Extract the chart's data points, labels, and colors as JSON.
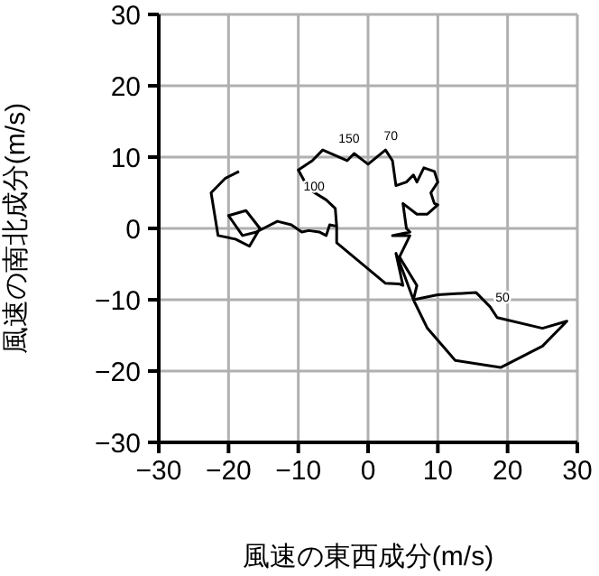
{
  "chart_data": {
    "type": "line",
    "xlabel": "風速の東西成分(m/s)",
    "ylabel": "風速の南北成分(m/s)",
    "xlim": [
      -30,
      30
    ],
    "ylim": [
      -30,
      30
    ],
    "xticks": [
      -30,
      -20,
      -10,
      0,
      10,
      20,
      30
    ],
    "yticks": [
      -30,
      -20,
      -10,
      0,
      10,
      20,
      30
    ],
    "grid": true,
    "marker": "none",
    "line_style": "solid",
    "series": [
      {
        "color": "#000000",
        "x": [
          -18.5,
          -20.5,
          -22.5,
          -21.5,
          -19,
          -17,
          -15.5,
          -17.5,
          -20,
          -18,
          -16,
          -15,
          -13,
          -11,
          -9.5,
          -8.5,
          -7,
          -6,
          -5.5,
          -4.5,
          -4.7,
          -6,
          -8.5,
          -10,
          -8,
          -6.5,
          -3,
          -2,
          0,
          2.5,
          3.5,
          4,
          5.5,
          6.5,
          7,
          8,
          9.5,
          10,
          9,
          9.5,
          10,
          8.5,
          7,
          5,
          5.5,
          6,
          3.5,
          6,
          4.5,
          7,
          6.5,
          10,
          15.5,
          17.5,
          18.5,
          25,
          28.5,
          25,
          19,
          12.5,
          8.5,
          6.5,
          5,
          4,
          5,
          4.5,
          2.5,
          -4.5,
          -4.5
        ],
        "values": [
          8,
          7,
          5,
          -1,
          -1.5,
          -2.5,
          0,
          2.5,
          1.8,
          -1,
          -0.5,
          0,
          1,
          0.5,
          -0.5,
          -0.3,
          -0.5,
          -1,
          0.5,
          0.3,
          2.8,
          4,
          5.5,
          8.2,
          9.5,
          11,
          9.5,
          10.5,
          9,
          11,
          9.5,
          6,
          6.5,
          7.5,
          6.5,
          8.5,
          8,
          6.5,
          5,
          3.5,
          3.3,
          2,
          2,
          3.5,
          0,
          -0.5,
          -1,
          -1,
          -4,
          -8,
          -10,
          -9.3,
          -9,
          -11,
          -12.5,
          -14,
          -13,
          -16.5,
          -19.5,
          -18.5,
          -14,
          -10,
          -6,
          -3.5,
          -8,
          -7.8,
          -7.7,
          -2,
          0.3
        ]
      }
    ],
    "annotations": [
      {
        "text": "150",
        "x": -4.5,
        "y": 11.3
      },
      {
        "text": "70",
        "x": 2,
        "y": 11.7
      },
      {
        "text": "100",
        "x": -9.5,
        "y": 4.5
      },
      {
        "text": "50",
        "x": 18,
        "y": -11
      }
    ]
  }
}
